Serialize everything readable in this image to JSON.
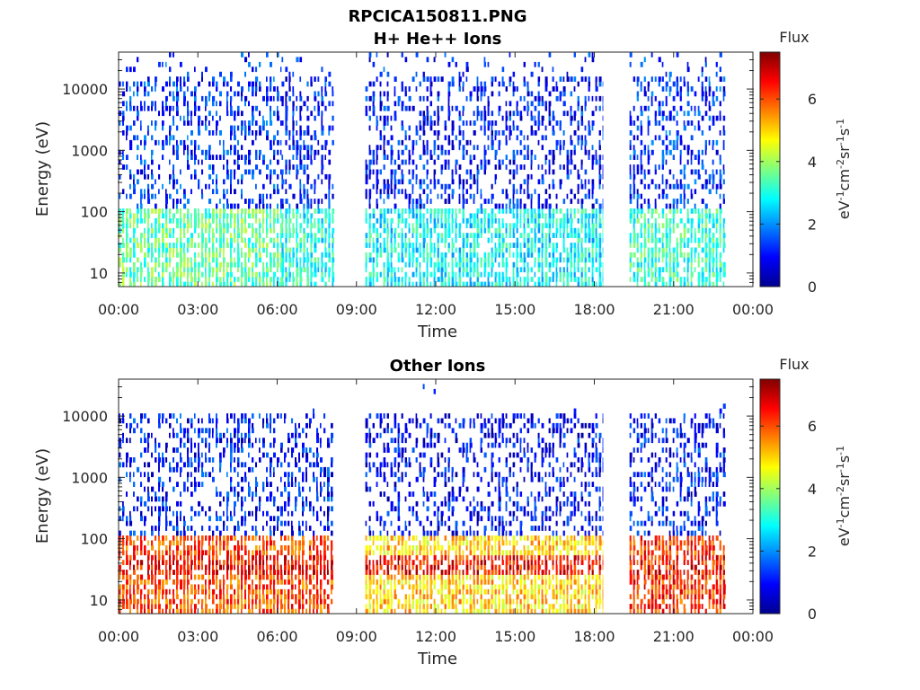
{
  "figure": {
    "title": "RPCICA150811.PNG",
    "colorbar_ticks": [
      "0",
      "2",
      "4",
      "6"
    ],
    "colors": {
      "colormap": [
        "#00008f",
        "#0000ff",
        "#0080ff",
        "#00ffff",
        "#80ff80",
        "#ffff00",
        "#ff8000",
        "#ff0000",
        "#800000"
      ]
    }
  },
  "chart_data": [
    {
      "type": "heatmap",
      "title": "H+ He++ Ions",
      "xlabel": "Time",
      "ylabel": "Energy (eV)",
      "x_ticks": [
        "00:00",
        "03:00",
        "06:00",
        "09:00",
        "12:00",
        "15:00",
        "18:00",
        "21:00",
        "00:00"
      ],
      "xlim": [
        "00:00",
        "24:00"
      ],
      "y_scale": "log",
      "y_ticks": [
        "10",
        "100",
        "1000",
        "10000"
      ],
      "ylim": [
        6,
        40000
      ],
      "colorbar_label": "Flux",
      "colorbar_units": "eV-1cm-2sr-1s-1",
      "clim": [
        0,
        7.5
      ],
      "data_gaps": [
        [
          "08:10",
          "09:20"
        ],
        [
          "18:20",
          "19:20"
        ]
      ],
      "approx_data_end": "23:00",
      "segments": [
        {
          "from": "00:00",
          "to": "06:10",
          "low_energy_flux": 3.5,
          "high_energy_flux": 1.0
        },
        {
          "from": "06:10",
          "to": "08:10",
          "low_energy_flux": 3.0,
          "high_energy_flux": 0.8
        },
        {
          "from": "09:20",
          "to": "18:20",
          "low_energy_flux": 2.8,
          "high_energy_flux": 0.8
        },
        {
          "from": "19:20",
          "to": "23:00",
          "low_energy_flux": 3.2,
          "high_energy_flux": 1.0
        }
      ]
    },
    {
      "type": "heatmap",
      "title": "Other Ions",
      "xlabel": "Time",
      "ylabel": "Energy (eV)",
      "x_ticks": [
        "00:00",
        "03:00",
        "06:00",
        "09:00",
        "12:00",
        "15:00",
        "18:00",
        "21:00",
        "00:00"
      ],
      "xlim": [
        "00:00",
        "24:00"
      ],
      "y_scale": "log",
      "y_ticks": [
        "10",
        "100",
        "1000",
        "10000"
      ],
      "ylim": [
        6,
        40000
      ],
      "colorbar_label": "Flux",
      "colorbar_units": "eV-1cm-2sr-1s-1",
      "clim": [
        0,
        7.5
      ],
      "data_gaps": [
        [
          "08:10",
          "09:20"
        ],
        [
          "18:20",
          "19:20"
        ]
      ],
      "approx_data_end": "23:00",
      "peak_energy_band_eV": [
        25,
        50
      ],
      "peak_flux": 6.5,
      "segments": [
        {
          "from": "00:00",
          "to": "08:10",
          "low_energy_flux": 6.0,
          "high_energy_flux": 0.8
        },
        {
          "from": "09:20",
          "to": "18:20",
          "low_energy_flux": 5.0,
          "high_energy_flux": 0.6
        },
        {
          "from": "19:20",
          "to": "23:00",
          "low_energy_flux": 6.2,
          "high_energy_flux": 0.8
        }
      ]
    }
  ]
}
